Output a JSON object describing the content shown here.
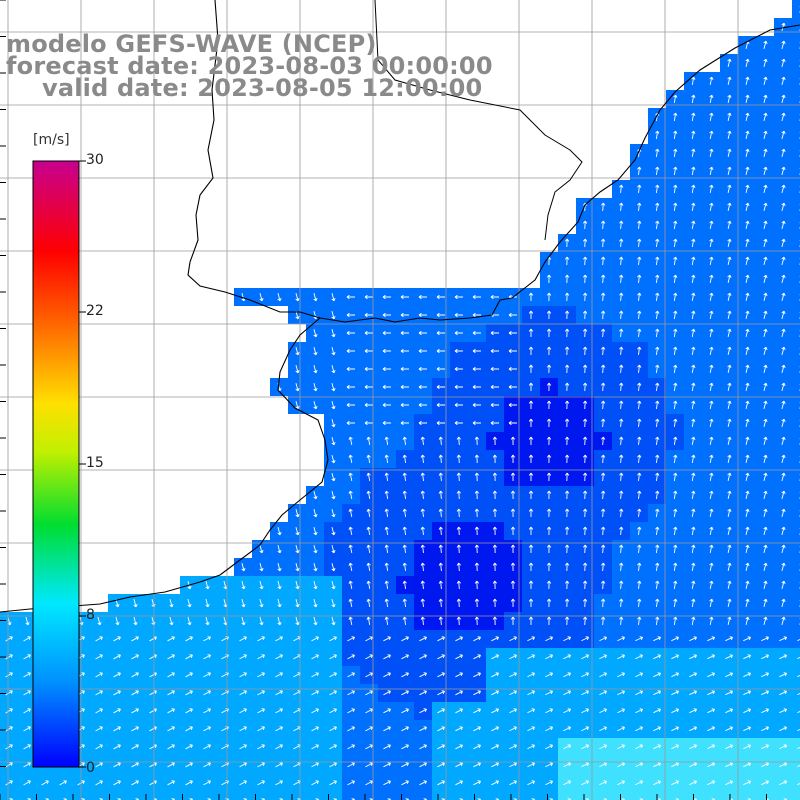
{
  "title": {
    "model": "modelo GEFS-WAVE (NCEP)",
    "forecast": "forecast date: 2023-08-03 00:00:00",
    "valid": "valid date: 2023-08-05 12:00:00"
  },
  "colorbar": {
    "unit": "[m/s]",
    "ticks": [
      "30",
      "22",
      "15",
      "8",
      "0"
    ],
    "range": [
      0,
      30
    ],
    "colors": [
      "#0000ff",
      "#0090ff",
      "#00e8ff",
      "#00e000",
      "#ffff00",
      "#ff7000",
      "#ff0000",
      "#d00090"
    ]
  },
  "map": {
    "type": "wind-speed-field",
    "variable": "wind speed and direction",
    "land_color": "#ffffff",
    "coastline_color": "#000000",
    "grid_color": "#9a9a9a",
    "field_colors": {
      "calm": "#0018f0",
      "low": "#0050f8",
      "medium": "#0070ff",
      "high": "#00a8ff",
      "very_high": "#40e0ff"
    }
  }
}
